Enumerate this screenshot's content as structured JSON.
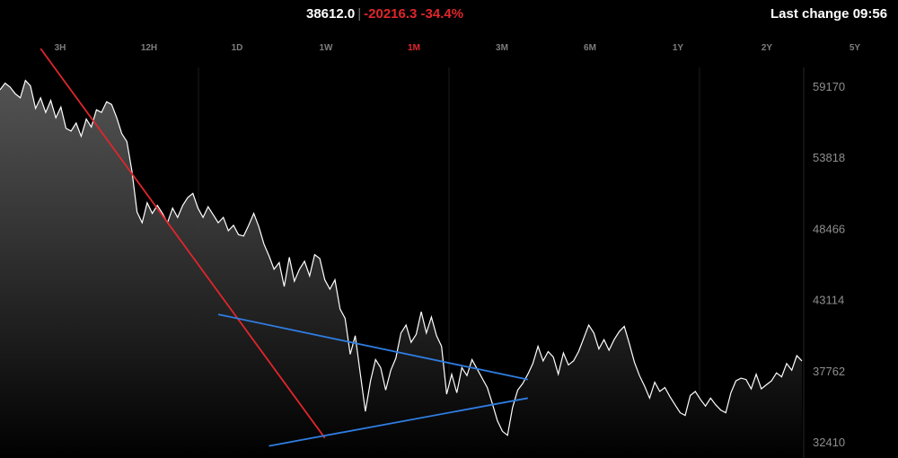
{
  "header": {
    "price": "38612.0",
    "separator": "|",
    "change": "-20216.3 -34.4%",
    "last_change": "Last change 09:56"
  },
  "ranges": [
    {
      "label": "3H",
      "active": false
    },
    {
      "label": "12H",
      "active": false
    },
    {
      "label": "1D",
      "active": false
    },
    {
      "label": "1W",
      "active": false
    },
    {
      "label": "1M",
      "active": true
    },
    {
      "label": "3M",
      "active": false
    },
    {
      "label": "6M",
      "active": false
    },
    {
      "label": "1Y",
      "active": false
    },
    {
      "label": "2Y",
      "active": false
    },
    {
      "label": "5Y",
      "active": false
    }
  ],
  "colors": {
    "price_line": "#ffffff",
    "down_trendline": "#e0262b",
    "triangle_lines": "#2f7de1",
    "negative": "#e0262b",
    "active_range": "#e0262b"
  },
  "chart_data": {
    "type": "area",
    "y_ticks": [
      59170,
      53818,
      48466,
      43114,
      37762,
      32410
    ],
    "ylim": [
      31000,
      62500
    ],
    "grid": "vertical",
    "series": [
      {
        "values": [
          58900,
          59400,
          59100,
          58600,
          58300,
          59600,
          59200,
          57500,
          58300,
          57200,
          58100,
          56800,
          57600,
          56000,
          55800,
          56400,
          55400,
          56700,
          56100,
          57400,
          57200,
          58000,
          57800,
          56800,
          55600,
          55000,
          52800,
          49700,
          48900,
          50400,
          49600,
          50200,
          49600,
          48900,
          50000,
          49300,
          50200,
          50800,
          51100,
          50000,
          49300,
          50100,
          49500,
          48900,
          49300,
          48300,
          48700,
          48000,
          47900,
          48700,
          49600,
          48600,
          47300,
          46400,
          45400,
          45900,
          44100,
          46300,
          44500,
          45400,
          46000,
          44900,
          46500,
          46200,
          44600,
          43900,
          44600,
          42400,
          41700,
          39000,
          40400,
          37500,
          34700,
          37000,
          38600,
          38000,
          36300,
          37800,
          38700,
          40600,
          41200,
          39900,
          40500,
          42200,
          40600,
          41800,
          40400,
          39600,
          36000,
          37500,
          36100,
          38000,
          37400,
          38600,
          37900,
          37200,
          36500,
          35300,
          34000,
          33200,
          32900,
          35000,
          36300,
          36800,
          37500,
          38300,
          39600,
          38500,
          39200,
          38800,
          37500,
          39100,
          38200,
          38500,
          39200,
          40200,
          41200,
          40600,
          39400,
          40100,
          39300,
          40100,
          40700,
          41100,
          39800,
          38400,
          37400,
          36600,
          35700,
          36900,
          36200,
          36500,
          35800,
          35200,
          34600,
          34400,
          35900,
          36200,
          35600,
          35100,
          35700,
          35200,
          34800,
          34600,
          36100,
          37000,
          37200,
          37100,
          36400,
          37500,
          36400,
          36700,
          37000,
          37600,
          37300,
          38300,
          37800,
          38900,
          38500
        ]
      }
    ],
    "trendlines": [
      {
        "color": "red",
        "from": {
          "index": 8,
          "value": 62000
        },
        "to": {
          "index": 64,
          "value": 32700
        }
      },
      {
        "color": "blue",
        "from": {
          "index": 43,
          "value": 42000
        },
        "to": {
          "index": 104,
          "value": 37100
        }
      },
      {
        "color": "blue",
        "from": {
          "index": 53,
          "value": 32100
        },
        "to": {
          "index": 104,
          "value": 35700
        }
      }
    ]
  }
}
